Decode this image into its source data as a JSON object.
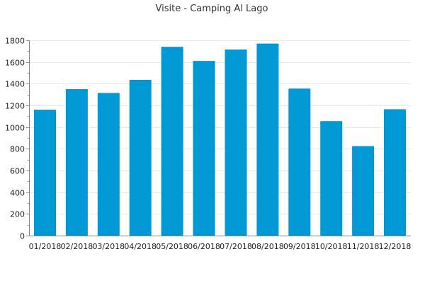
{
  "chart_data": {
    "type": "bar",
    "title": "Visite - Camping Al Lago",
    "xlabel": "",
    "ylabel": "",
    "categories": [
      "01/2018",
      "02/2018",
      "03/2018",
      "04/2018",
      "05/2018",
      "06/2018",
      "07/2018",
      "08/2018",
      "09/2018",
      "10/2018",
      "11/2018",
      "12/2018"
    ],
    "values": [
      1160,
      1350,
      1315,
      1435,
      1740,
      1610,
      1715,
      1770,
      1355,
      1055,
      825,
      1165
    ],
    "ylim": [
      0,
      1800
    ],
    "yticks": [
      0,
      200,
      400,
      600,
      800,
      1000,
      1200,
      1400,
      1600,
      1800
    ],
    "grid": true,
    "legend": "none",
    "bar_color": "#0099d6"
  }
}
